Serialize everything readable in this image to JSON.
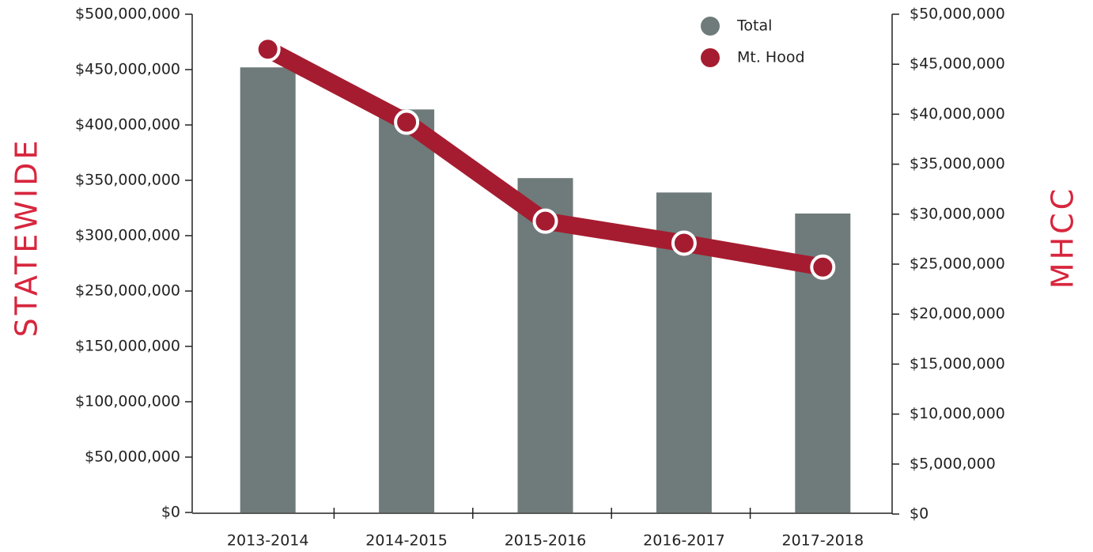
{
  "chart_data": {
    "type": "bar_line",
    "categories": [
      "2013-2014",
      "2014-2015",
      "2015-2016",
      "2016-2017",
      "2017-2018"
    ],
    "series": [
      {
        "name": "Total",
        "type": "bar",
        "color": "#6e7b7a",
        "values": [
          452000000,
          414000000,
          352000000,
          339000000,
          320000000
        ]
      },
      {
        "name": "Mt. Hood",
        "type": "line",
        "axis": "y2",
        "color": "#a51c30",
        "values": [
          46500000,
          39200000,
          29300000,
          27100000,
          24700000
        ]
      }
    ],
    "ylabel": "STATEWIDE",
    "y2label": "MHCC",
    "axis_label_color": "#d7263d",
    "ylim": [
      0,
      500000000
    ],
    "yticks": [
      {
        "value": 0,
        "label": "$0"
      },
      {
        "value": 50000000,
        "label": "$50,000,000"
      },
      {
        "value": 100000000,
        "label": "$100,000,000"
      },
      {
        "value": 150000000,
        "label": "$150,000,000"
      },
      {
        "value": 250000000,
        "label": "$250,000,000"
      },
      {
        "value": 300000000,
        "label": "$300,000,000"
      },
      {
        "value": 350000000,
        "label": "$350,000,000"
      },
      {
        "value": 400000000,
        "label": "$400,000,000"
      },
      {
        "value": 450000000,
        "label": "$450,000,000"
      },
      {
        "value": 500000000,
        "label": "$500,000,000"
      }
    ],
    "y2lim": [
      0,
      50000000
    ],
    "y2ticks": [
      {
        "value": 0,
        "label": "$0"
      },
      {
        "value": 5000000,
        "label": "$5,000,000"
      },
      {
        "value": 10000000,
        "label": "$10,000,000"
      },
      {
        "value": 15000000,
        "label": "$15,000,000"
      },
      {
        "value": 20000000,
        "label": "$20,000,000"
      },
      {
        "value": 25000000,
        "label": "$25,000,000"
      },
      {
        "value": 30000000,
        "label": "$30,000,000"
      },
      {
        "value": 35000000,
        "label": "$35,000,000"
      },
      {
        "value": 40000000,
        "label": "$40,000,000"
      },
      {
        "value": 45000000,
        "label": "$45,000,000"
      },
      {
        "value": 50000000,
        "label": "$50,000,000"
      }
    ],
    "legend": "top-right"
  }
}
